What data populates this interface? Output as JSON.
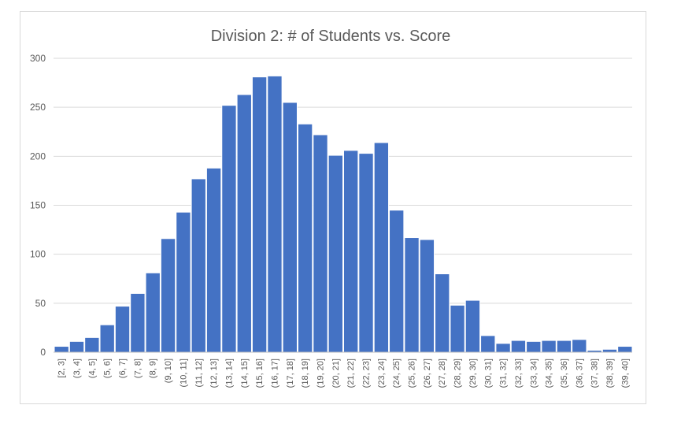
{
  "chart_data": {
    "type": "bar",
    "title": "Division 2: # of Students vs. Score",
    "xlabel": "",
    "ylabel": "",
    "ylim": [
      0,
      300
    ],
    "yticks": [
      0,
      50,
      100,
      150,
      200,
      250,
      300
    ],
    "grid": true,
    "bar_color": "#4472C4",
    "categories": [
      "[2, 3]",
      "(3, 4]",
      "(4, 5]",
      "(5, 6]",
      "(6, 7]",
      "(7, 8]",
      "(8, 9]",
      "(9, 10]",
      "(10, 11]",
      "(11, 12]",
      "(12, 13]",
      "(13, 14]",
      "(14, 15]",
      "(15, 16]",
      "(16, 17]",
      "(17, 18]",
      "(18, 19]",
      "(19, 20]",
      "(20, 21]",
      "(21, 22]",
      "(22, 23]",
      "(23, 24]",
      "(24, 25]",
      "(25, 26]",
      "(26, 27]",
      "(27, 28]",
      "(28, 29]",
      "(29, 30]",
      "(30, 31]",
      "(31, 32]",
      "(32, 33]",
      "(33, 34]",
      "(34, 35]",
      "(35, 36]",
      "(36, 37]",
      "(37, 38]",
      "(38, 39]",
      "(39, 40]"
    ],
    "values": [
      6,
      11,
      15,
      28,
      47,
      60,
      81,
      116,
      143,
      177,
      188,
      252,
      263,
      281,
      282,
      255,
      233,
      222,
      201,
      206,
      203,
      214,
      145,
      117,
      115,
      80,
      48,
      53,
      17,
      9,
      12,
      11,
      12,
      12,
      13,
      2,
      3,
      6
    ]
  }
}
